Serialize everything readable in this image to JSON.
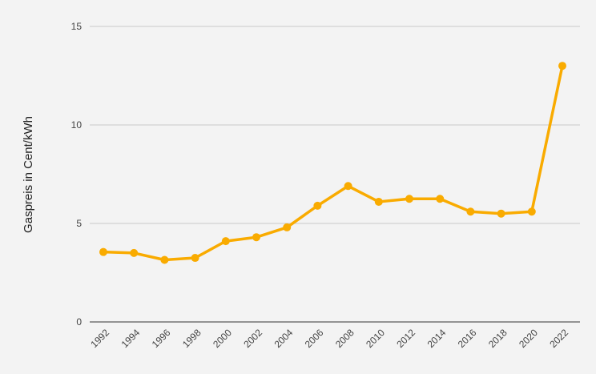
{
  "chart_data": {
    "type": "line",
    "title": "",
    "xlabel": "",
    "ylabel": "Gaspreis in Cent/kWh",
    "categories": [
      "1992",
      "1994",
      "1996",
      "1998",
      "2000",
      "2002",
      "2004",
      "2006",
      "2008",
      "2010",
      "2012",
      "2014",
      "2016",
      "2018",
      "2020",
      "2022"
    ],
    "series": [
      {
        "values": [
          3.55,
          3.5,
          3.15,
          3.25,
          4.1,
          4.3,
          4.8,
          5.9,
          6.9,
          6.1,
          6.25,
          6.25,
          5.6,
          5.5,
          5.6,
          13.0
        ]
      }
    ],
    "ylim": [
      0,
      15
    ],
    "yticks": [
      0,
      5,
      10,
      15
    ],
    "grid": true,
    "legend": "none",
    "colors": {
      "line": "#f9ab00",
      "grid": "#c8c8c8",
      "background": "#f3f3f3"
    }
  }
}
